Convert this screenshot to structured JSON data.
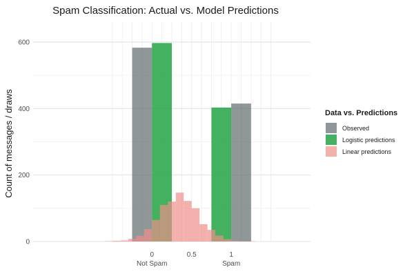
{
  "chart_data": {
    "type": "bar",
    "title": "Spam Classification: Actual vs. Model Predictions",
    "xlabel": "",
    "ylabel": "Count of messages / draws",
    "xlim": [
      -1.5,
      2.0
    ],
    "ylim": [
      0,
      660
    ],
    "x_ticks": [
      {
        "value": 0,
        "label": "0"
      },
      {
        "value": 0.5,
        "label": "0.5"
      },
      {
        "value": 1,
        "label": "1"
      }
    ],
    "x_category_labels": [
      {
        "value": 0,
        "label": "Not Spam"
      },
      {
        "value": 1,
        "label": "Spam"
      }
    ],
    "y_ticks": [
      0,
      200,
      400,
      600
    ],
    "grid": true,
    "legend": {
      "title": "Data vs. Predictions",
      "position": "right",
      "entries": [
        "Observed",
        "Logistic predictions",
        "Linear predictions"
      ]
    },
    "series": [
      {
        "name": "Observed",
        "color": "#5f6b6d",
        "opacity": 0.7,
        "bin_width": 0.25,
        "x": [
          -0.125,
          1.125
        ],
        "values": [
          583,
          415
        ]
      },
      {
        "name": "Logistic predictions",
        "color": "#2fa84f",
        "opacity": 0.9,
        "bin_width": 0.25,
        "x": [
          0.125,
          0.875
        ],
        "values": [
          597,
          403
        ]
      },
      {
        "name": "Linear predictions",
        "color": "#ee8e8a",
        "opacity": 0.7,
        "bin_width": 0.1,
        "x": [
          -0.55,
          -0.45,
          -0.35,
          -0.25,
          -0.15,
          -0.05,
          0.05,
          0.15,
          0.25,
          0.35,
          0.45,
          0.55,
          0.65,
          0.75,
          0.85,
          0.95,
          1.05,
          1.15,
          1.25,
          1.35,
          1.45
        ],
        "values": [
          1,
          2,
          3,
          8,
          17,
          37,
          65,
          110,
          120,
          147,
          122,
          100,
          52,
          35,
          18,
          7,
          2,
          1,
          1,
          0,
          0
        ]
      }
    ]
  }
}
